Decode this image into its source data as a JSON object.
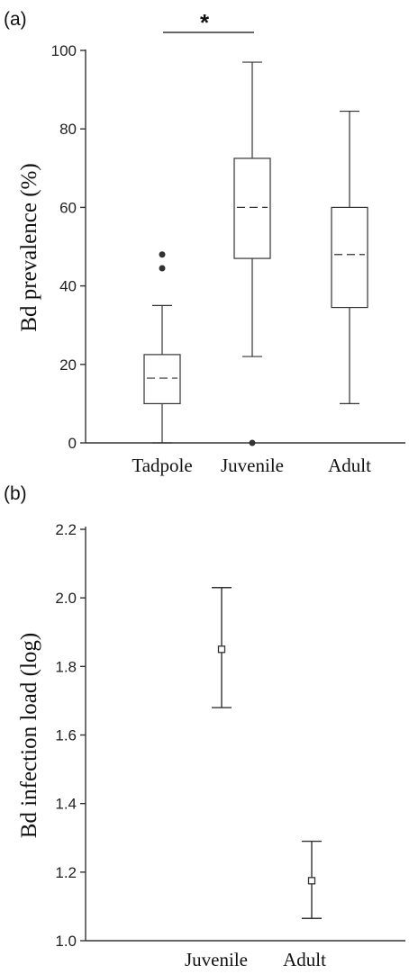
{
  "chart_data": [
    {
      "type": "box",
      "panel_label": "(a)",
      "ylabel": "Bd prevalence (%)",
      "xlabel": "",
      "ylim": [
        0,
        100
      ],
      "yticks": [
        0,
        20,
        40,
        60,
        80,
        100
      ],
      "categories": [
        "Tadpole",
        "Juvenile",
        "Adult"
      ],
      "boxes": [
        {
          "category": "Tadpole",
          "min": 0,
          "q1": 10,
          "median": 16.5,
          "q3": 22.5,
          "max": 35,
          "outliers": [
            44.5,
            48
          ]
        },
        {
          "category": "Juvenile",
          "min": 22,
          "q1": 47,
          "median": 60,
          "q3": 72.5,
          "max": 97,
          "outliers": [
            0
          ]
        },
        {
          "category": "Adult",
          "min": 10,
          "q1": 34.5,
          "median": 48,
          "q3": 60,
          "max": 84.5,
          "outliers": []
        }
      ],
      "significance": {
        "between": [
          "Tadpole",
          "Juvenile"
        ],
        "label": "*"
      },
      "grid": false
    },
    {
      "type": "errorbar",
      "panel_label": "(b)",
      "ylabel": "Bd infection load (log)",
      "xlabel": "",
      "ylim": [
        1.0,
        2.2
      ],
      "yticks": [
        "1.0",
        "1.2",
        "1.4",
        "1.6",
        "1.8",
        "2.0",
        "2.2"
      ],
      "categories": [
        "Juvenile",
        "Adult"
      ],
      "points": [
        {
          "category": "Juvenile",
          "mean": 1.85,
          "lower": 1.68,
          "upper": 2.03
        },
        {
          "category": "Adult",
          "mean": 1.175,
          "lower": 1.065,
          "upper": 1.29
        }
      ],
      "grid": false
    }
  ]
}
